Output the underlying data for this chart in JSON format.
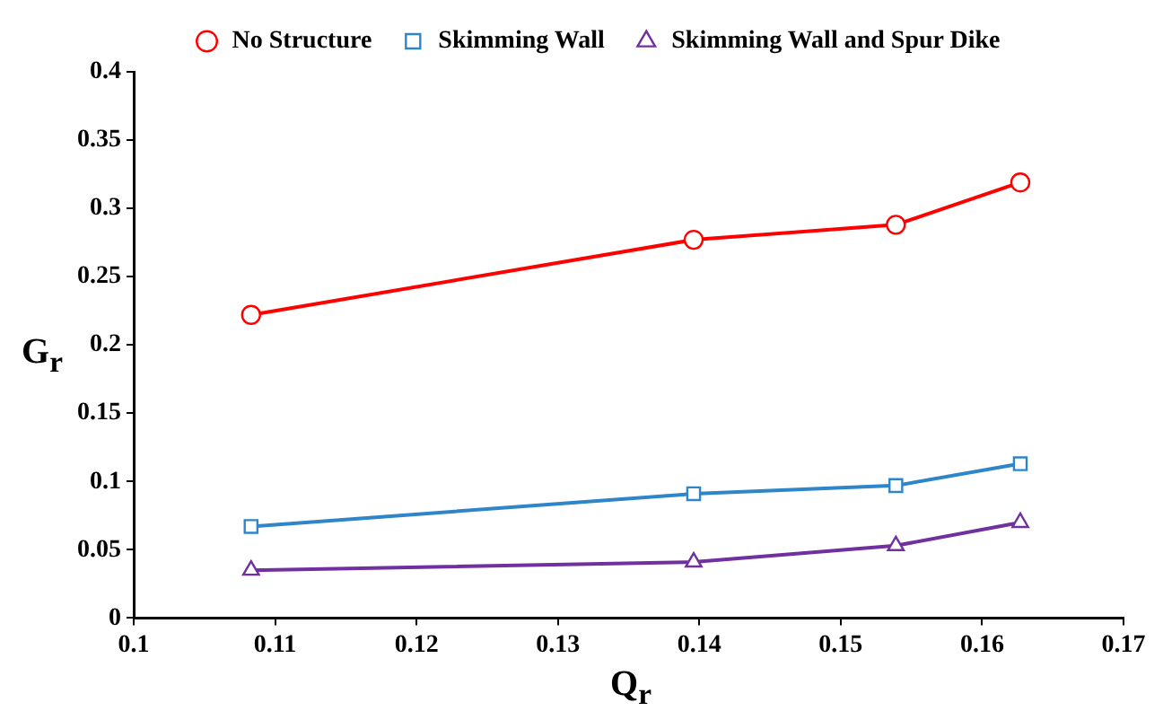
{
  "chart_data": {
    "type": "line",
    "xlabel": "Q$_{r}$",
    "ylabel": "G$_{r}$",
    "x": [
      0.1083,
      0.1396,
      0.1539,
      0.1627
    ],
    "series": [
      {
        "name": "No Structure",
        "color": "#ff0000",
        "marker": "circle",
        "values": [
          0.222,
          0.277,
          0.288,
          0.319
        ]
      },
      {
        "name": "Skimming Wall",
        "color": "#2e86c8",
        "marker": "square",
        "values": [
          0.067,
          0.091,
          0.097,
          0.113
        ]
      },
      {
        "name": "Skimming Wall and Spur Dike",
        "color": "#7030a0",
        "marker": "triangle",
        "values": [
          0.035,
          0.041,
          0.053,
          0.07
        ]
      }
    ],
    "xlim": [
      0.1,
      0.17
    ],
    "xticks": [
      0.1,
      0.11,
      0.12,
      0.13,
      0.14,
      0.15,
      0.16,
      0.17
    ],
    "ylim": [
      0,
      0.4
    ],
    "yticks": [
      0,
      0.05,
      0.1,
      0.15,
      0.2,
      0.25,
      0.3,
      0.35,
      0.4
    ],
    "legend": "top"
  }
}
